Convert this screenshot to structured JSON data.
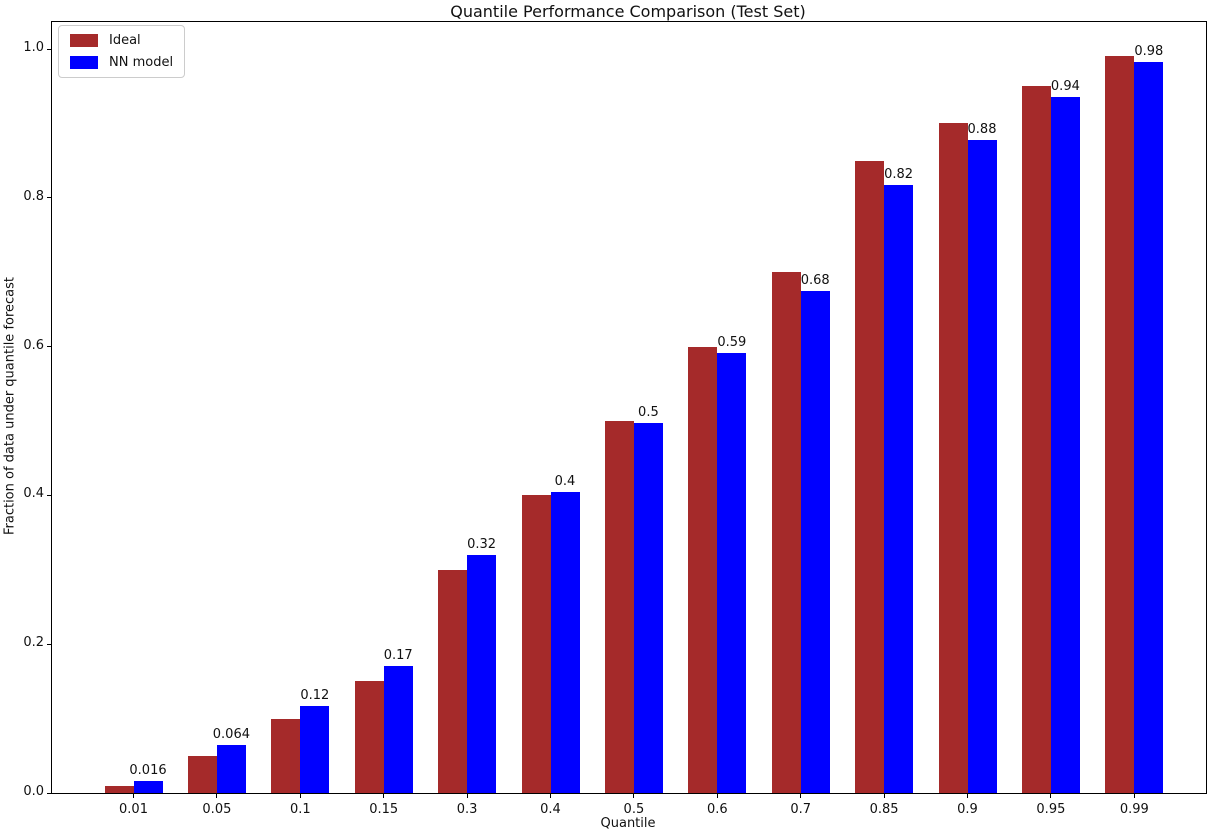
{
  "figure": {
    "title": "Quantile Performance Comparison (Test Set)",
    "xlabel": "Quantile",
    "ylabel": "Fraction of data under quantile forecast"
  },
  "legend": {
    "items": [
      {
        "label": "Ideal",
        "color": "#a52a2a"
      },
      {
        "label": "NN model",
        "color": "#0000ff"
      }
    ]
  },
  "chart_data": {
    "type": "bar",
    "title": "Quantile Performance Comparison (Test Set)",
    "xlabel": "Quantile",
    "ylabel": "Fraction of data under quantile forecast",
    "categories": [
      "0.01",
      "0.05",
      "0.1",
      "0.15",
      "0.3",
      "0.4",
      "0.5",
      "0.6",
      "0.7",
      "0.85",
      "0.9",
      "0.95",
      "0.99"
    ],
    "series": [
      {
        "name": "Ideal",
        "color": "#a52a2a",
        "values": [
          0.01,
          0.05,
          0.1,
          0.15,
          0.3,
          0.4,
          0.5,
          0.6,
          0.7,
          0.85,
          0.9,
          0.95,
          0.99
        ]
      },
      {
        "name": "NN model",
        "color": "#0000ff",
        "values": [
          0.016,
          0.064,
          0.117,
          0.171,
          0.32,
          0.404,
          0.497,
          0.592,
          0.675,
          0.817,
          0.878,
          0.935,
          0.983
        ],
        "labels": [
          "0.016",
          "0.064",
          "0.12",
          "0.17",
          "0.32",
          "0.4",
          "0.5",
          "0.59",
          "0.68",
          "0.82",
          "0.88",
          "0.94",
          "0.98"
        ]
      }
    ],
    "yticks": [
      "0.0",
      "0.2",
      "0.4",
      "0.6",
      "0.8",
      "1.0"
    ],
    "ylim": [
      0,
      1.036
    ],
    "legend_position": "upper left",
    "grid": false
  }
}
